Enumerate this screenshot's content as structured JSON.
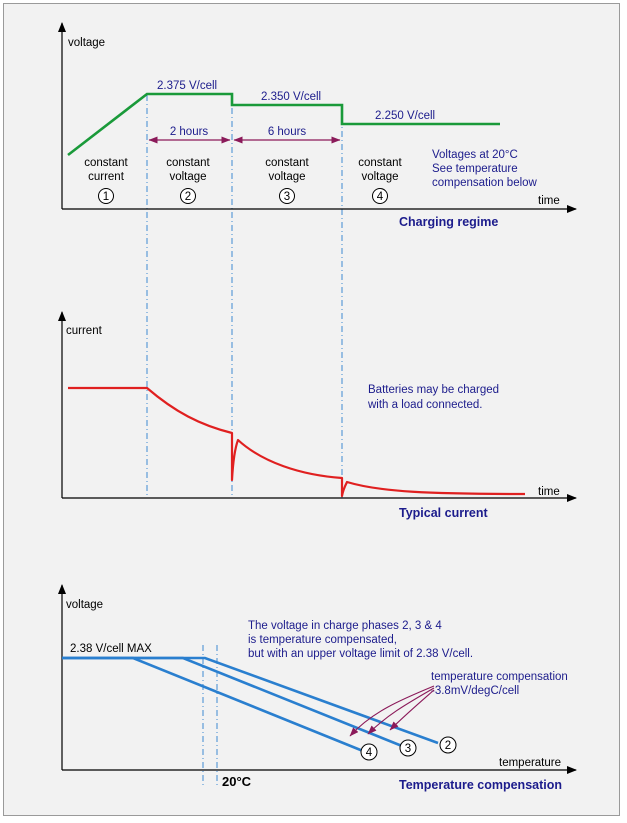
{
  "colors": {
    "background": "#f2f2f2",
    "voltage_line": "#1a9a3a",
    "current_line": "#e02020",
    "temp_lines": "#2a7fcf",
    "dimension_arrows": "#8b1a5a",
    "guide_lines": "#2a7fcf",
    "title_text": "#1c1c8c"
  },
  "voltage_chart": {
    "y_label": "voltage",
    "x_label": "time",
    "title": "Charging regime",
    "level_1": "2.375 V/cell",
    "level_2": "2.350 V/cell",
    "level_3": "2.250 V/cell",
    "duration_phase2": "2 hours",
    "duration_phase3": "6 hours",
    "phases": [
      {
        "line1": "constant",
        "line2": "current",
        "number": "1"
      },
      {
        "line1": "constant",
        "line2": "voltage",
        "number": "2"
      },
      {
        "line1": "constant",
        "line2": "voltage",
        "number": "3"
      },
      {
        "line1": "constant",
        "line2": "voltage",
        "number": "4"
      }
    ],
    "note": [
      "Voltages at 20°C",
      "See temperature",
      "compensation below"
    ]
  },
  "current_chart": {
    "y_label": "current",
    "x_label": "time",
    "title": "Typical current",
    "note": [
      "Batteries may be charged",
      "with a load connected."
    ]
  },
  "temperature_chart": {
    "y_label": "voltage",
    "x_label": "temperature",
    "title": "Temperature compensation",
    "max_label": "2.38 V/cell MAX",
    "ref_temp_label": "20°C",
    "note": [
      "The voltage in charge phases 2, 3 & 4",
      "is temperature compensated,",
      "but with an upper voltage limit of 2.38 V/cell."
    ],
    "compensation_label": [
      "temperature compensation",
      "-3.8mV/degC/cell"
    ],
    "line_numbers": [
      "4",
      "3",
      "2"
    ]
  }
}
